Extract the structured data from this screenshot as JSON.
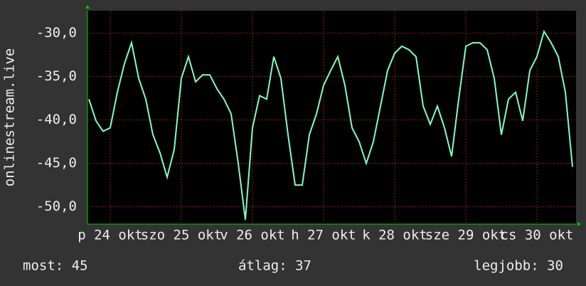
{
  "chart_data": {
    "type": "line",
    "y_label": "onlinestream.live",
    "x": [
      -0.3,
      -0.2,
      -0.1,
      0.0,
      0.1,
      0.2,
      0.3,
      0.4,
      0.5,
      0.6,
      0.7,
      0.8,
      0.9,
      1.0,
      1.1,
      1.2,
      1.3,
      1.4,
      1.5,
      1.6,
      1.7,
      1.8,
      1.9,
      2.0,
      2.1,
      2.2,
      2.3,
      2.4,
      2.5,
      2.6,
      2.7,
      2.8,
      2.9,
      3.0,
      3.1,
      3.2,
      3.3,
      3.4,
      3.5,
      3.6,
      3.7,
      3.8,
      3.9,
      4.0,
      4.1,
      4.2,
      4.3,
      4.4,
      4.5,
      4.6,
      4.7,
      4.8,
      4.9,
      5.0,
      5.1,
      5.2,
      5.3,
      5.4,
      5.5,
      5.6,
      5.7,
      5.8,
      5.9,
      6.0,
      6.1,
      6.2,
      6.3,
      6.4,
      6.5
    ],
    "series": [
      {
        "name": "onlinestream.live",
        "color": "#80ffc0",
        "values": [
          -37.6,
          -40.1,
          -41.3,
          -40.9,
          -36.8,
          -33.5,
          -31.1,
          -35.2,
          -37.6,
          -41.7,
          -43.8,
          -46.6,
          -43.4,
          -35.2,
          -32.7,
          -35.6,
          -34.8,
          -34.8,
          -36.4,
          -37.6,
          -39.3,
          -45.0,
          -51.5,
          -40.9,
          -37.2,
          -37.6,
          -32.7,
          -35.2,
          -41.7,
          -47.5,
          -47.5,
          -41.7,
          -39.3,
          -36.0,
          -34.3,
          -32.7,
          -36.0,
          -40.9,
          -42.5,
          -45.0,
          -42.5,
          -38.4,
          -34.3,
          -32.3,
          -31.5,
          -31.9,
          -32.7,
          -38.4,
          -40.5,
          -38.4,
          -40.9,
          -44.2,
          -37.6,
          -31.5,
          -31.1,
          -31.1,
          -31.9,
          -35.2,
          -41.7,
          -37.6,
          -36.8,
          -40.1,
          -34.3,
          -32.7,
          -29.8,
          -31.1,
          -32.7,
          -36.8,
          -45.4
        ]
      }
    ],
    "xlim": [
      -0.32,
      6.55
    ],
    "xticks": [
      {
        "value": 0,
        "label": "p 24 okt"
      },
      {
        "value": 1,
        "label": "szo 25 okt"
      },
      {
        "value": 2,
        "label": "v 26 okt"
      },
      {
        "value": 3,
        "label": "h 27 okt"
      },
      {
        "value": 4,
        "label": "k 28 okt"
      },
      {
        "value": 5,
        "label": "sze 29 okt"
      },
      {
        "value": 6,
        "label": "cs 30 okt"
      }
    ],
    "ylim": [
      -52,
      -27.4
    ],
    "yticks": [
      {
        "value": -50,
        "label": "-50,0"
      },
      {
        "value": -45,
        "label": "-45,0"
      },
      {
        "value": -40,
        "label": "-40,0"
      },
      {
        "value": -35,
        "label": "-35,0"
      },
      {
        "value": -30,
        "label": "-30,0"
      }
    ],
    "grid": true,
    "footer": {
      "current": "most: 45",
      "average": "átlag: 37",
      "max": "legjobb: 30"
    }
  }
}
